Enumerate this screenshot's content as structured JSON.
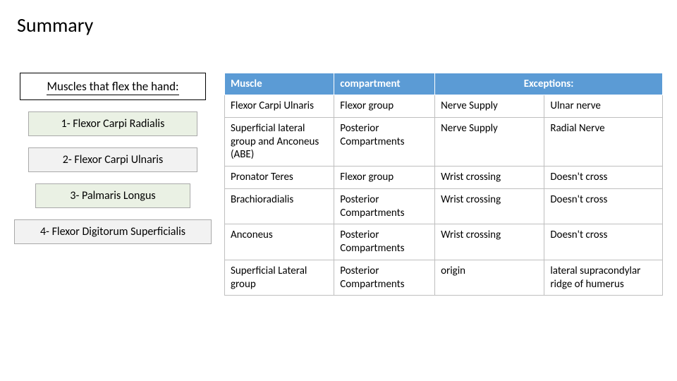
{
  "title": "Summary",
  "left": {
    "header": "Muscles that flex the hand:",
    "items": [
      "1- Flexor Carpi Radialis",
      "2- Flexor Carpi Ulnaris",
      "3- Palmaris Longus",
      "4- Flexor Digitorum Superficialis"
    ]
  },
  "table": {
    "headers": {
      "h1": "Muscle",
      "h2": "compartment",
      "h3": "Exceptions:"
    },
    "rows": [
      {
        "c1": "Flexor Carpi Ulnaris",
        "c2": "Flexor group",
        "c3": "Nerve Supply",
        "c4": "Ulnar nerve"
      },
      {
        "c1": "Superficial lateral group and Anconeus (ABE)",
        "c2": "Posterior Compartments",
        "c3": "Nerve Supply",
        "c4": "Radial Nerve"
      },
      {
        "c1": "Pronator Teres",
        "c2": "Flexor group",
        "c3": "Wrist crossing",
        "c4": "Doesn't cross"
      },
      {
        "c1": "Brachioradialis",
        "c2": "Posterior Compartments",
        "c3": "Wrist crossing",
        "c4": "Doesn't cross"
      },
      {
        "c1": "Anconeus",
        "c2": "Posterior Compartments",
        "c3": "Wrist crossing",
        "c4": "Doesn't cross"
      },
      {
        "c1": "Superficial Lateral group",
        "c2": "Posterior Compartments",
        "c3": "origin",
        "c4": "lateral supracondylar ridge of humerus"
      }
    ]
  },
  "colors": {
    "header_bg": "#5b9bd5",
    "header_fg": "#ffffff",
    "cell_border": "#bfbfbf",
    "left_alt_bg": "#eaf1e4",
    "left_bg": "#f2f2f2"
  }
}
